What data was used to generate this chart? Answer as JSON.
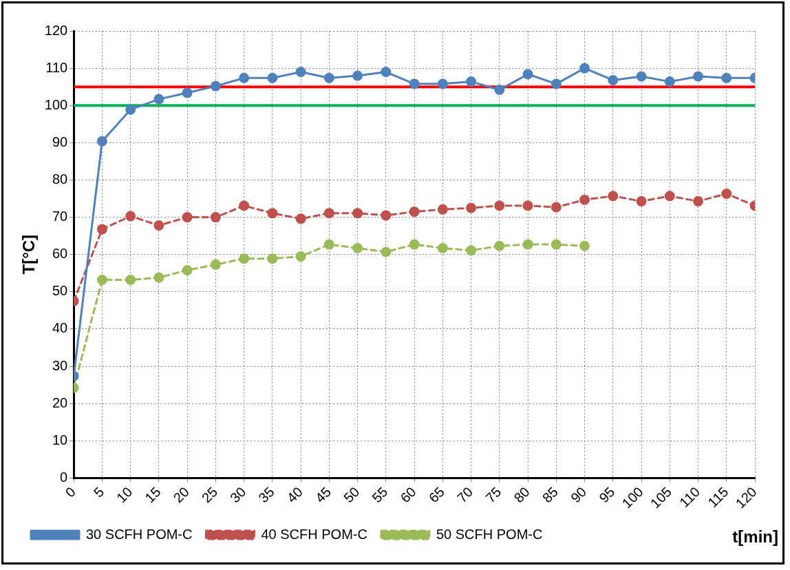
{
  "chart_data": {
    "type": "line",
    "xlabel": "t[min]",
    "ylabel": "T[°C]",
    "x": [
      0,
      5,
      10,
      15,
      20,
      25,
      30,
      35,
      40,
      45,
      50,
      55,
      60,
      65,
      70,
      75,
      80,
      85,
      90,
      95,
      100,
      105,
      110,
      115,
      120
    ],
    "series": [
      {
        "name": "30 SCFH POM-C",
        "color": "#4f81bd",
        "line_style": "solid",
        "values": [
          27.4,
          90.4,
          98.9,
          101.7,
          103.4,
          105.2,
          107.4,
          107.4,
          109,
          107.4,
          108,
          109,
          105.8,
          105.8,
          106.4,
          104.2,
          108.4,
          105.8,
          110,
          106.8,
          107.8,
          106.4,
          107.8,
          107.4,
          107.4
        ]
      },
      {
        "name": "40 SCFH POM-C",
        "color": "#c0504d",
        "line_style": "dashed",
        "values": [
          47.5,
          66.8,
          70.3,
          67.8,
          70,
          70,
          73.1,
          71.1,
          69.6,
          71.1,
          71.1,
          70.5,
          71.5,
          72.1,
          72.5,
          73.1,
          73.1,
          72.7,
          74.7,
          75.7,
          74.3,
          75.7,
          74.3,
          76.3,
          73.1
        ]
      },
      {
        "name": "50 SCFH POM-C",
        "color": "#9bbb59",
        "line_style": "dashed",
        "values": [
          24.2,
          53.2,
          53.2,
          53.8,
          55.8,
          57.3,
          58.9,
          58.9,
          59.5,
          62.7,
          61.7,
          60.7,
          62.7,
          61.7,
          61.1,
          62.3,
          62.7,
          62.7,
          62.3,
          null,
          null,
          null,
          null,
          null,
          null
        ]
      }
    ],
    "ref_lines": [
      {
        "axis": "y",
        "value": 105,
        "color": "#ff0000"
      },
      {
        "axis": "y",
        "value": 100,
        "color": "#00b050"
      }
    ],
    "xlim": [
      0,
      120
    ],
    "xticks": [
      0,
      5,
      10,
      15,
      20,
      25,
      30,
      35,
      40,
      45,
      50,
      55,
      60,
      65,
      70,
      75,
      80,
      85,
      90,
      95,
      100,
      105,
      110,
      115,
      120
    ],
    "ylim": [
      0,
      120
    ],
    "yticks": [
      0,
      10,
      20,
      30,
      40,
      50,
      60,
      70,
      80,
      90,
      100,
      110,
      120
    ],
    "grid": true,
    "legend": "bottom",
    "marker": "circle"
  }
}
